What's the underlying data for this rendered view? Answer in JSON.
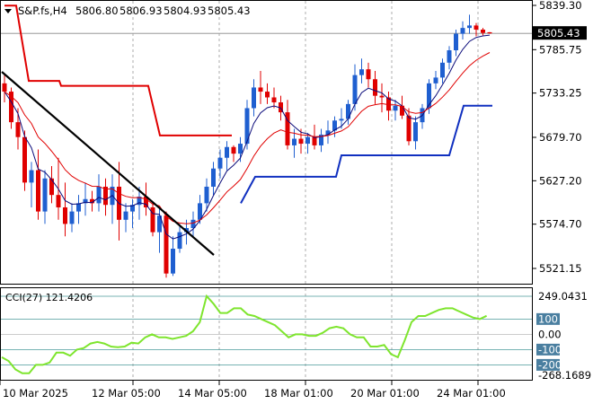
{
  "header": {
    "symbol": "S&P.fs,H4",
    "open": "5806.80",
    "high": "5806.93",
    "low": "5804.93",
    "close": "5805.43"
  },
  "main_axis": {
    "ticks": [
      "5839.30",
      "5785.75",
      "5733.25",
      "5679.70",
      "5627.20",
      "5574.70",
      "5521.15"
    ],
    "tick_values": [
      5839.3,
      5785.75,
      5733.25,
      5679.7,
      5627.2,
      5574.7,
      5521.15
    ],
    "current_price_label": "5805.43",
    "current_price": 5805.43
  },
  "cci": {
    "label": "CCI(27) 121.4206",
    "ticks": [
      "249.0431",
      "100",
      "0.00",
      "-100",
      "-200",
      "-268.1689"
    ],
    "tick_values": [
      249.0431,
      100,
      0,
      -100,
      -200,
      -268.1689
    ]
  },
  "time_axis": {
    "labels": [
      "10 Mar 2025",
      "12 Mar 05:00",
      "14 Mar 05:00",
      "18 Mar 01:00",
      "20 Mar 01:00",
      "24 Mar 01:00"
    ]
  },
  "colors": {
    "bull": "#1f5fd0",
    "bear": "#e00000",
    "ma_slow": "#e00000",
    "ma_fast": "#0b0b7a",
    "trail_bear": "#e00000",
    "trail_bull": "#1030c0",
    "cci": "#7ee52e",
    "trendline": "#000000",
    "badge_bg": "#000000"
  },
  "chart_data": {
    "type": "candlestick",
    "series": [
      {
        "name": "price",
        "ohlc": [
          [
            5745,
            5755,
            5722,
            5735
          ],
          [
            5735,
            5740,
            5690,
            5698
          ],
          [
            5698,
            5715,
            5665,
            5680
          ],
          [
            5680,
            5688,
            5615,
            5625
          ],
          [
            5625,
            5650,
            5595,
            5640
          ],
          [
            5640,
            5665,
            5580,
            5590
          ],
          [
            5590,
            5640,
            5575,
            5630
          ],
          [
            5630,
            5645,
            5600,
            5610
          ],
          [
            5610,
            5655,
            5580,
            5595
          ],
          [
            5595,
            5625,
            5560,
            5575
          ],
          [
            5575,
            5600,
            5565,
            5590
          ],
          [
            5590,
            5610,
            5575,
            5600
          ],
          [
            5600,
            5625,
            5585,
            5605
          ],
          [
            5605,
            5615,
            5590,
            5600
          ],
          [
            5600,
            5635,
            5590,
            5620
          ],
          [
            5620,
            5630,
            5585,
            5598
          ],
          [
            5598,
            5635,
            5575,
            5620
          ],
          [
            5620,
            5650,
            5555,
            5580
          ],
          [
            5580,
            5600,
            5565,
            5590
          ],
          [
            5590,
            5605,
            5570,
            5598
          ],
          [
            5598,
            5620,
            5580,
            5608
          ],
          [
            5608,
            5625,
            5585,
            5595
          ],
          [
            5595,
            5600,
            5560,
            5565
          ],
          [
            5565,
            5595,
            5540,
            5585
          ],
          [
            5585,
            5590,
            5510,
            5515
          ],
          [
            5515,
            5560,
            5512,
            5545
          ],
          [
            5545,
            5575,
            5540,
            5565
          ],
          [
            5565,
            5580,
            5550,
            5570
          ],
          [
            5570,
            5590,
            5560,
            5580
          ],
          [
            5580,
            5610,
            5575,
            5600
          ],
          [
            5600,
            5630,
            5590,
            5620
          ],
          [
            5620,
            5650,
            5610,
            5642
          ],
          [
            5642,
            5665,
            5630,
            5655
          ],
          [
            5655,
            5675,
            5640,
            5668
          ],
          [
            5668,
            5670,
            5650,
            5660
          ],
          [
            5660,
            5680,
            5650,
            5672
          ],
          [
            5672,
            5725,
            5665,
            5715
          ],
          [
            5715,
            5750,
            5705,
            5740
          ],
          [
            5740,
            5760,
            5720,
            5735
          ],
          [
            5735,
            5745,
            5720,
            5728
          ],
          [
            5728,
            5740,
            5715,
            5722
          ],
          [
            5722,
            5730,
            5700,
            5710
          ],
          [
            5710,
            5725,
            5665,
            5670
          ],
          [
            5670,
            5690,
            5655,
            5678
          ],
          [
            5678,
            5690,
            5660,
            5672
          ],
          [
            5672,
            5685,
            5660,
            5680
          ],
          [
            5680,
            5695,
            5665,
            5670
          ],
          [
            5670,
            5690,
            5662,
            5683
          ],
          [
            5683,
            5700,
            5672,
            5688
          ],
          [
            5688,
            5705,
            5680,
            5700
          ],
          [
            5700,
            5715,
            5690,
            5702
          ],
          [
            5702,
            5725,
            5695,
            5720
          ],
          [
            5720,
            5768,
            5712,
            5755
          ],
          [
            5755,
            5775,
            5745,
            5762
          ],
          [
            5762,
            5770,
            5740,
            5750
          ],
          [
            5750,
            5760,
            5720,
            5730
          ],
          [
            5730,
            5745,
            5710,
            5728
          ],
          [
            5728,
            5735,
            5700,
            5712
          ],
          [
            5712,
            5725,
            5700,
            5718
          ],
          [
            5718,
            5730,
            5702,
            5706
          ],
          [
            5706,
            5715,
            5670,
            5675
          ],
          [
            5675,
            5705,
            5665,
            5698
          ],
          [
            5698,
            5720,
            5690,
            5715
          ],
          [
            5715,
            5750,
            5708,
            5745
          ],
          [
            5745,
            5760,
            5738,
            5752
          ],
          [
            5752,
            5775,
            5745,
            5770
          ],
          [
            5770,
            5790,
            5762,
            5785
          ],
          [
            5785,
            5810,
            5778,
            5805
          ],
          [
            5805,
            5820,
            5798,
            5812
          ],
          [
            5812,
            5828,
            5805,
            5815
          ],
          [
            5815,
            5818,
            5802,
            5810
          ],
          [
            5810,
            5812,
            5803,
            5806
          ],
          [
            5806.8,
            5806.93,
            5804.93,
            5805.43
          ]
        ]
      }
    ],
    "xlabel": "",
    "ylabel": ""
  }
}
